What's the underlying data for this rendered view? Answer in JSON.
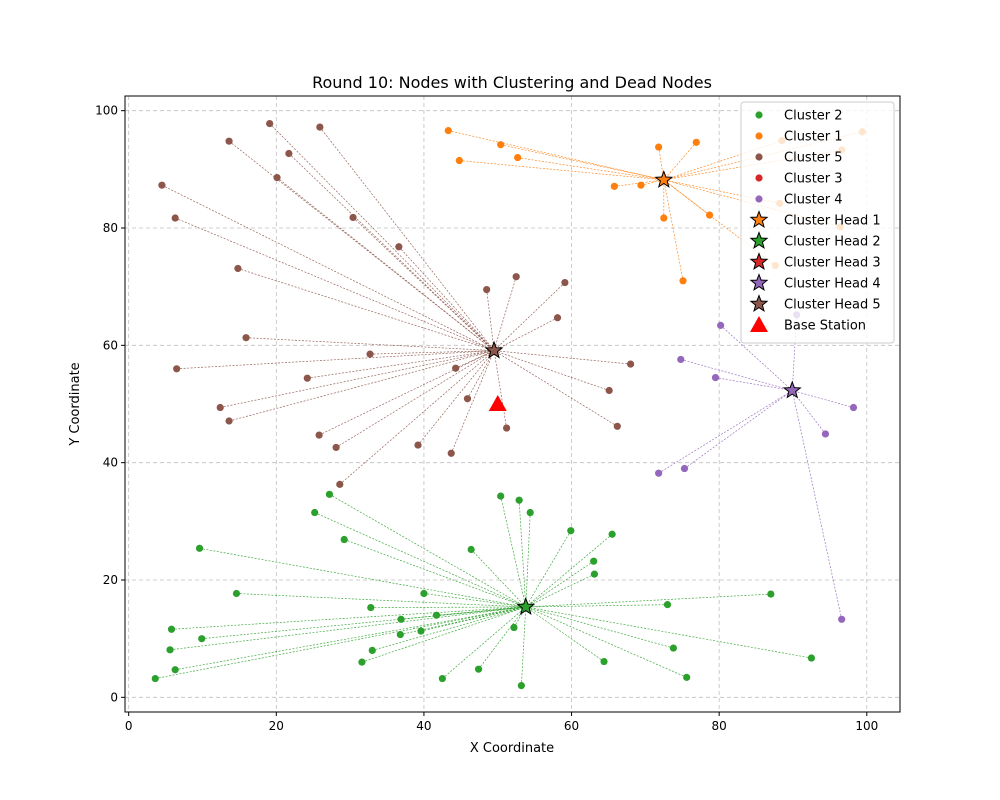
{
  "chart_data": {
    "type": "scatter",
    "title": "Round 10: Nodes with Clustering and Dead Nodes",
    "xlabel": "X Coordinate",
    "ylabel": "Y Coordinate",
    "xlim": [
      -0.5,
      104.5
    ],
    "ylim": [
      -2.5,
      102.5
    ],
    "xticks": [
      0,
      20,
      40,
      60,
      80,
      100
    ],
    "yticks": [
      0,
      20,
      40,
      60,
      80,
      100
    ],
    "grid": true,
    "legend_position": "top-right",
    "series": [
      {
        "name": "Cluster 2",
        "color": "#2ca02c",
        "points": [
          [
            3.6,
            3.2
          ],
          [
            6.3,
            4.7
          ],
          [
            5.6,
            8.1
          ],
          [
            5.8,
            11.6
          ],
          [
            9.9,
            10.0
          ],
          [
            9.6,
            25.4
          ],
          [
            14.6,
            17.7
          ],
          [
            25.2,
            31.5
          ],
          [
            27.2,
            34.6
          ],
          [
            29.2,
            26.9
          ],
          [
            31.6,
            6.0
          ],
          [
            32.8,
            15.3
          ],
          [
            33.0,
            8.0
          ],
          [
            36.8,
            10.7
          ],
          [
            36.9,
            13.3
          ],
          [
            39.6,
            11.3
          ],
          [
            40.0,
            17.7
          ],
          [
            41.7,
            14.0
          ],
          [
            42.5,
            3.2
          ],
          [
            46.4,
            25.2
          ],
          [
            47.4,
            4.8
          ],
          [
            50.4,
            34.3
          ],
          [
            52.2,
            11.9
          ],
          [
            52.9,
            33.6
          ],
          [
            53.2,
            2.0
          ],
          [
            54.4,
            31.5
          ],
          [
            59.9,
            28.4
          ],
          [
            63.0,
            23.2
          ],
          [
            63.1,
            21.0
          ],
          [
            64.4,
            6.1
          ],
          [
            65.5,
            27.8
          ],
          [
            73.0,
            15.8
          ],
          [
            73.8,
            8.4
          ],
          [
            75.6,
            3.4
          ],
          [
            87.0,
            17.6
          ],
          [
            92.5,
            6.7
          ]
        ]
      },
      {
        "name": "Cluster 1",
        "color": "#ff7f0e",
        "points": [
          [
            43.3,
            96.6
          ],
          [
            44.8,
            91.5
          ],
          [
            50.4,
            94.2
          ],
          [
            52.7,
            92.0
          ],
          [
            65.8,
            87.1
          ],
          [
            69.4,
            87.3
          ],
          [
            71.8,
            93.8
          ],
          [
            72.5,
            81.7
          ],
          [
            75.1,
            71.0
          ],
          [
            76.9,
            94.6
          ],
          [
            78.7,
            82.2
          ],
          [
            87.6,
            73.6
          ],
          [
            88.2,
            84.2
          ],
          [
            88.5,
            94.9
          ],
          [
            96.4,
            80.2
          ],
          [
            96.6,
            93.3
          ],
          [
            99.4,
            96.4
          ]
        ]
      },
      {
        "name": "Cluster 5",
        "color": "#8c564b",
        "points": [
          [
            4.5,
            87.3
          ],
          [
            6.3,
            81.7
          ],
          [
            6.5,
            56.0
          ],
          [
            12.4,
            49.4
          ],
          [
            13.6,
            47.1
          ],
          [
            13.6,
            94.8
          ],
          [
            14.8,
            73.1
          ],
          [
            15.9,
            61.3
          ],
          [
            19.1,
            97.8
          ],
          [
            20.1,
            88.6
          ],
          [
            21.7,
            92.7
          ],
          [
            24.2,
            54.4
          ],
          [
            25.8,
            44.7
          ],
          [
            25.9,
            97.2
          ],
          [
            28.1,
            42.6
          ],
          [
            28.6,
            36.3
          ],
          [
            30.4,
            81.8
          ],
          [
            32.7,
            58.5
          ],
          [
            36.6,
            76.8
          ],
          [
            39.2,
            43.0
          ],
          [
            43.7,
            41.6
          ],
          [
            44.3,
            56.1
          ],
          [
            45.9,
            50.9
          ],
          [
            48.5,
            69.5
          ],
          [
            51.2,
            45.9
          ],
          [
            52.5,
            71.7
          ],
          [
            58.1,
            64.7
          ],
          [
            59.1,
            70.7
          ],
          [
            65.1,
            52.3
          ],
          [
            66.2,
            46.2
          ],
          [
            68.0,
            56.8
          ]
        ]
      },
      {
        "name": "Cluster 3",
        "color": "#d62728",
        "points": []
      },
      {
        "name": "Cluster 4",
        "color": "#9467bd",
        "points": [
          [
            71.8,
            38.2
          ],
          [
            74.8,
            57.6
          ],
          [
            75.3,
            39.0
          ],
          [
            79.5,
            54.5
          ],
          [
            80.2,
            63.4
          ],
          [
            90.5,
            65.2
          ],
          [
            94.4,
            44.9
          ],
          [
            96.6,
            13.3
          ],
          [
            98.2,
            49.4
          ]
        ]
      }
    ],
    "cluster_heads": [
      {
        "name": "Cluster Head 1",
        "color": "#ff7f0e",
        "x": 72.5,
        "y": 88.2,
        "members": "Cluster 1"
      },
      {
        "name": "Cluster Head 2",
        "color": "#2ca02c",
        "x": 53.8,
        "y": 15.4,
        "members": "Cluster 2"
      },
      {
        "name": "Cluster Head 3",
        "color": "#d62728",
        "x": null,
        "y": null,
        "members": "Cluster 3"
      },
      {
        "name": "Cluster Head 4",
        "color": "#9467bd",
        "x": 89.9,
        "y": 52.3,
        "members": "Cluster 4"
      },
      {
        "name": "Cluster Head 5",
        "color": "#8c564b",
        "x": 49.5,
        "y": 59.1,
        "members": "Cluster 5"
      }
    ],
    "base_station": {
      "name": "Base Station",
      "color": "#ff0000",
      "x": 50,
      "y": 50
    }
  }
}
